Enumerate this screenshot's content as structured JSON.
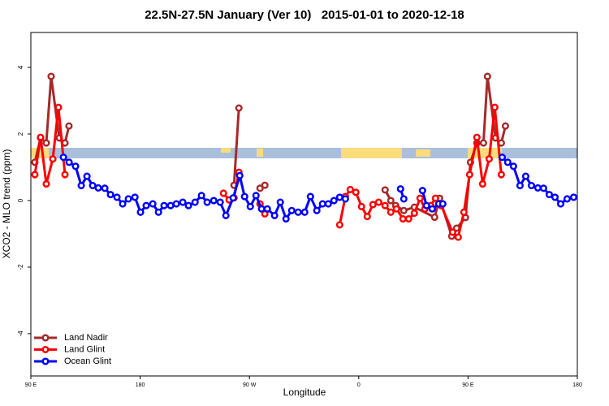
{
  "chart_data": {
    "type": "line",
    "title": "22.5N-27.5N January (Ver 10)   2015-01-01 to 2020-12-18",
    "x_label": "Longitude",
    "y_label": "XCO2 - MLO trend (ppm)",
    "xlim": [
      90,
      540
    ],
    "ylim": [
      -5.27,
      5.05
    ],
    "xticks": [
      {
        "value": 90,
        "label": "90 E"
      },
      {
        "value": 180,
        "label": "180"
      },
      {
        "value": 270,
        "label": "90 W"
      },
      {
        "value": 360,
        "label": "0"
      },
      {
        "value": 450,
        "label": "90 E"
      },
      {
        "value": 540,
        "label": "180"
      }
    ],
    "yticks": [
      -4,
      -2,
      0,
      2,
      4
    ],
    "legend": "bottom-left",
    "series": [
      {
        "name": "Land Nadir",
        "color": "#a52a2a",
        "x": [
          93.3,
          98.0,
          102.7,
          106.7,
          113.4,
          118.1,
          121.4,
          null,
          257.3,
          261.3,
          null,
          278.7,
          282.7,
          null,
          381.7,
          386.4,
          390.4,
          397.1,
          405.8,
          422.5,
          426.6,
          436.6,
          440.6,
          447.9,
          452.0,
          457.3,
          462.7,
          466.0,
          472.7,
          477.4,
          480.8
        ],
        "values": [
          1.15,
          1.88,
          1.73,
          3.73,
          1.88,
          1.73,
          2.24,
          null,
          0.46,
          2.78,
          null,
          0.37,
          0.46,
          null,
          0.32,
          0.0,
          -0.15,
          -0.3,
          -0.2,
          -0.5,
          0.07,
          -1.07,
          -0.83,
          -0.51,
          1.15,
          1.73,
          1.73,
          3.73,
          1.88,
          1.73,
          2.24
        ]
      },
      {
        "name": "Land Glint",
        "color": "#ff0000",
        "x": [
          93.3,
          98.0,
          102.7,
          108.1,
          112.7,
          118.1,
          null,
          248.6,
          253.3,
          257.3,
          261.3,
          null,
          278.7,
          282.7,
          null,
          344.3,
          349.0,
          353.0,
          357.6,
          362.3,
          367.0,
          371.7,
          376.4,
          381.7,
          386.4,
          391.1,
          396.4,
          401.1,
          405.8,
          410.5,
          414.5,
          419.2,
          423.2,
          427.9,
          437.3,
          441.9,
          446.6,
          451.3,
          457.3,
          462.0,
          467.4,
          472.0,
          477.4
        ],
        "values": [
          0.78,
          1.9,
          0.5,
          1.25,
          2.8,
          0.78,
          null,
          0.22,
          0.02,
          0.08,
          0.85,
          null,
          -0.1,
          -0.4,
          null,
          -0.73,
          0.12,
          0.33,
          0.25,
          -0.18,
          -0.48,
          -0.12,
          -0.05,
          -0.15,
          -0.35,
          -0.25,
          -0.55,
          -0.55,
          -0.38,
          0.07,
          -0.25,
          -0.15,
          0.07,
          -0.15,
          -0.95,
          -1.1,
          -0.35,
          0.78,
          1.9,
          0.5,
          1.25,
          2.8,
          0.78
        ]
      },
      {
        "name": "Ocean Glint",
        "color": "#0000ff",
        "x": [
          116.8,
          121.5,
          126.8,
          131.5,
          136.2,
          140.9,
          145.5,
          150.9,
          155.6,
          160.9,
          165.6,
          170.3,
          175.7,
          180.3,
          185.0,
          190.4,
          195.1,
          199.7,
          205.1,
          209.8,
          215.1,
          219.8,
          225.2,
          230.5,
          235.2,
          240.6,
          245.9,
          250.6,
          256.6,
          262.0,
          266.0,
          270.7,
          275.4,
          280.0,
          284.7,
          290.7,
          295.4,
          300.1,
          304.8,
          310.1,
          315.5,
          320.2,
          325.5,
          330.2,
          334.9,
          339.6,
          344.3,
          349.0,
          null,
          394.4,
          397.1,
          null,
          412.5,
          415.8,
          420.5,
          425.9,
          429.2,
          null,
          478.1,
          482.7,
          487.4,
          492.8,
          497.5,
          502.2,
          507.5,
          512.2,
          516.9,
          521.6,
          526.3,
          531.6,
          537.0
        ],
        "values": [
          1.3,
          1.15,
          1.03,
          0.45,
          0.73,
          0.45,
          0.38,
          0.37,
          0.18,
          0.1,
          -0.1,
          0.05,
          0.1,
          -0.35,
          -0.15,
          -0.1,
          -0.35,
          -0.15,
          -0.15,
          -0.1,
          -0.05,
          -0.15,
          -0.05,
          0.15,
          -0.05,
          0.0,
          -0.05,
          -0.45,
          0.08,
          0.75,
          0.12,
          -0.18,
          0.15,
          -0.25,
          -0.25,
          -0.45,
          -0.05,
          -0.55,
          -0.3,
          -0.35,
          -0.35,
          0.12,
          -0.3,
          -0.1,
          -0.1,
          0.0,
          0.1,
          0.05,
          null,
          0.35,
          0.05,
          null,
          0.3,
          -0.15,
          -0.25,
          -0.1,
          -0.1,
          null,
          1.3,
          1.15,
          1.03,
          0.45,
          0.73,
          0.45,
          0.38,
          0.37,
          0.18,
          0.1,
          -0.1,
          0.05,
          0.1
        ]
      }
    ]
  }
}
